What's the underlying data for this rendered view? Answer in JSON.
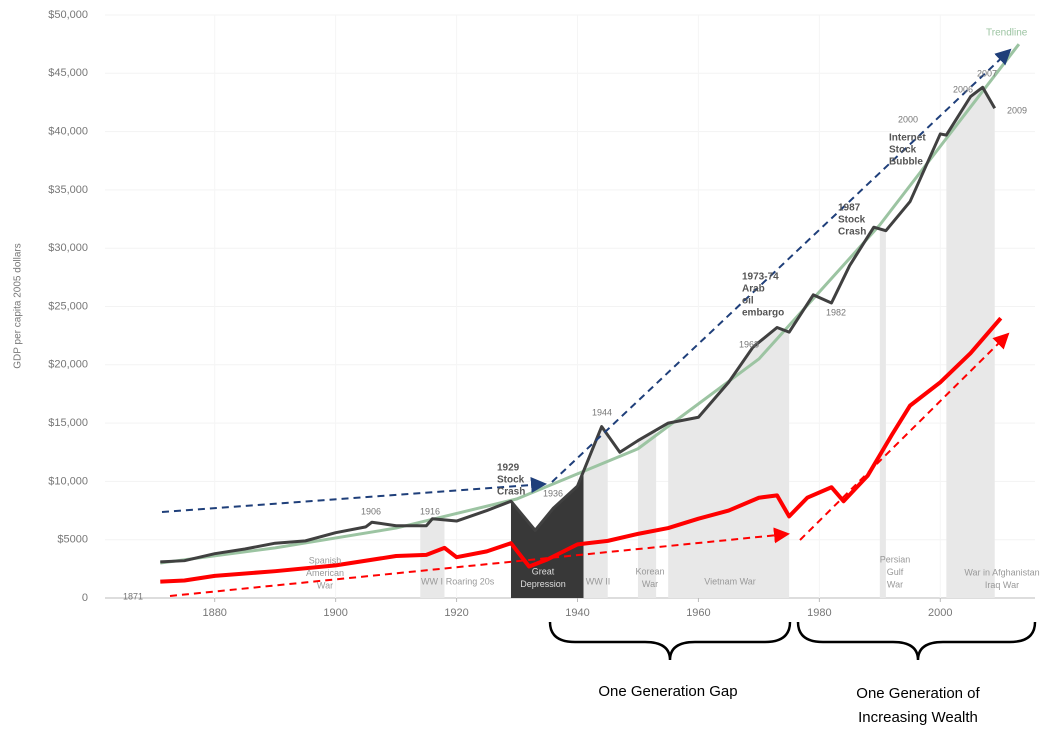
{
  "chart_data": {
    "type": "line",
    "y_label": "GDP per capita 2005 dollars",
    "xlim": [
      1865,
      2015
    ],
    "xticks": [
      1880,
      1900,
      1920,
      1940,
      1960,
      1980,
      2000
    ],
    "ylim": [
      0,
      50000
    ],
    "yticks": [
      0,
      {
        "value": 5000,
        "label": "$5000"
      },
      {
        "value": 10000,
        "label": "$10,000"
      },
      {
        "value": 15000,
        "label": "$15,000"
      },
      {
        "value": 20000,
        "label": "$20,000"
      },
      {
        "value": 25000,
        "label": "$25,000"
      },
      {
        "value": 30000,
        "label": "$30,000"
      },
      {
        "value": 35000,
        "label": "$35,000"
      },
      {
        "value": 40000,
        "label": "$40,000"
      },
      {
        "value": 45000,
        "label": "$45,000"
      },
      {
        "value": 50000,
        "label": "$50,000"
      }
    ],
    "grid": true,
    "series": [
      {
        "name": "Trendline",
        "color": "#9cc4a2",
        "x": [
          1871,
          1890,
          1910,
          1930,
          1950,
          1970,
          1990,
          2013
        ],
        "values": [
          3000,
          4300,
          6000,
          8500,
          12800,
          20500,
          32000,
          47500
        ]
      },
      {
        "color": "#404040",
        "x": [
          1871,
          1875,
          1880,
          1885,
          1890,
          1895,
          1900,
          1905,
          1906,
          1910,
          1915,
          1916,
          1920,
          1925,
          1929,
          1933,
          1936,
          1940,
          1944,
          1947,
          1950,
          1955,
          1960,
          1965,
          1969,
          1973,
          1975,
          1979,
          1982,
          1985,
          1989,
          1991,
          1995,
          2000,
          2001,
          2005,
          2007,
          2009
        ],
        "values": [
          3100,
          3200,
          3800,
          4200,
          4700,
          4900,
          5600,
          6100,
          6500,
          6200,
          6200,
          6800,
          6600,
          7500,
          8300,
          5800,
          7700,
          9600,
          14700,
          12500,
          13500,
          15000,
          15500,
          18500,
          21500,
          23200,
          22800,
          26000,
          25300,
          28500,
          31800,
          31500,
          34000,
          39800,
          39700,
          43000,
          43800,
          42000
        ]
      },
      {
        "color": "#ff0000",
        "x": [
          1871,
          1875,
          1880,
          1890,
          1900,
          1910,
          1915,
          1918,
          1920,
          1925,
          1929,
          1932,
          1935,
          1940,
          1945,
          1950,
          1955,
          1960,
          1965,
          1970,
          1973,
          1975,
          1978,
          1982,
          1984,
          1988,
          1992,
          1995,
          2000,
          2005,
          2010
        ],
        "values": [
          1400,
          1500,
          1900,
          2300,
          2800,
          3600,
          3700,
          4300,
          3500,
          4000,
          4700,
          2700,
          3300,
          4600,
          4900,
          5500,
          6000,
          6800,
          7500,
          8600,
          8800,
          7000,
          8600,
          9500,
          8300,
          10500,
          14000,
          16500,
          18500,
          21000,
          24000
        ]
      }
    ],
    "periods": [
      {
        "label": [
          "Spanish",
          "American",
          "War"
        ]
      },
      {
        "label": [
          "WW I"
        ],
        "start": 1914,
        "end": 1918,
        "color": "#e8e8e8"
      },
      {
        "label": [
          "Roaring 20s"
        ]
      },
      {
        "label": [
          "Great",
          "Depression"
        ],
        "start": 1929,
        "end": 1941,
        "color": "#383838"
      },
      {
        "label": [
          "WW II"
        ],
        "start": 1941,
        "end": 1945,
        "color": "#e8e8e8"
      },
      {
        "label": [
          "Korean",
          "War"
        ],
        "start": 1950,
        "end": 1953,
        "color": "#e8e8e8"
      },
      {
        "label": [
          "Vietnam War"
        ],
        "start": 1955,
        "end": 1975,
        "color": "#e8e8e8"
      },
      {
        "label": [
          "Persian",
          "Gulf",
          "War"
        ],
        "start": 1990,
        "end": 1991,
        "color": "#e8e8e8"
      },
      {
        "label": [
          "War in Afghanistan",
          "Iraq War"
        ],
        "start": 2001,
        "end": 2010,
        "color": "#e8e8e8"
      }
    ],
    "annotations": [
      "1871",
      "1906",
      "1916",
      "1936",
      "1944",
      "1968",
      "1982",
      "2000",
      "2006",
      "2007",
      "2009"
    ],
    "events": [
      [
        "1929",
        "Stock",
        "Crash"
      ],
      [
        "1973-74",
        "Arab",
        "oil",
        "embargo"
      ],
      [
        "1987",
        "Stock",
        "Crash"
      ],
      [
        "Internet",
        "Stock",
        "Bubble"
      ]
    ],
    "generations": [
      "One Generation Gap",
      [
        "One Generation of",
        "Increasing Wealth"
      ]
    ]
  }
}
